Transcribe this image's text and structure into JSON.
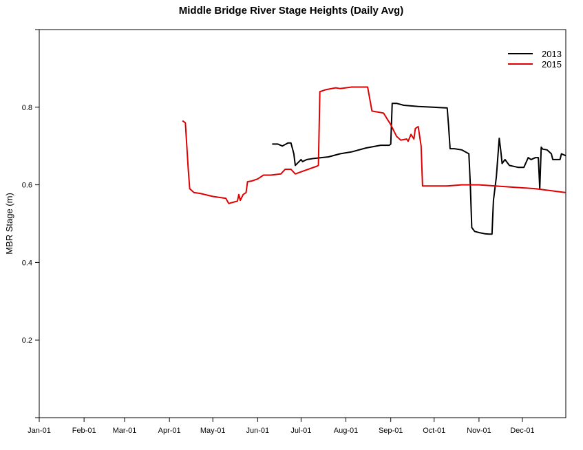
{
  "chart_data": {
    "type": "line",
    "title": "Middle Bridge River Stage Heights (Daily Avg)",
    "xlabel": "",
    "ylabel": "MBR Stage (m)",
    "xlim": [
      "2015-01-01",
      "2015-12-31"
    ],
    "ylim": [
      0.0,
      1.0
    ],
    "x_ticks": [
      {
        "date": "2015-01-01",
        "label": "Jan-01"
      },
      {
        "date": "2015-02-01",
        "label": "Feb-01"
      },
      {
        "date": "2015-03-01",
        "label": "Mar-01"
      },
      {
        "date": "2015-04-01",
        "label": "Apr-01"
      },
      {
        "date": "2015-05-01",
        "label": "May-01"
      },
      {
        "date": "2015-06-01",
        "label": "Jun-01"
      },
      {
        "date": "2015-07-01",
        "label": "Jul-01"
      },
      {
        "date": "2015-08-01",
        "label": "Aug-01"
      },
      {
        "date": "2015-09-01",
        "label": "Sep-01"
      },
      {
        "date": "2015-10-01",
        "label": "Oct-01"
      },
      {
        "date": "2015-11-01",
        "label": "Nov-01"
      },
      {
        "date": "2015-12-01",
        "label": "Dec-01"
      }
    ],
    "y_ticks": [
      {
        "value": 0.2,
        "label": "0.2"
      },
      {
        "value": 0.4,
        "label": "0.4"
      },
      {
        "value": 0.6,
        "label": "0.6"
      },
      {
        "value": 0.8,
        "label": "0.8"
      }
    ],
    "grid": false,
    "legend": "top-right",
    "series": [
      {
        "name": "2013",
        "color": "#000000",
        "x": [
          "2015-06-11",
          "2015-06-15",
          "2015-06-18",
          "2015-06-22",
          "2015-06-24",
          "2015-06-26",
          "2015-06-27",
          "2015-07-01",
          "2015-07-02",
          "2015-07-05",
          "2015-07-10",
          "2015-07-20",
          "2015-07-28",
          "2015-08-05",
          "2015-08-15",
          "2015-08-25",
          "2015-08-31",
          "2015-09-01",
          "2015-09-02",
          "2015-09-05",
          "2015-09-10",
          "2015-09-20",
          "2015-09-30",
          "2015-10-10",
          "2015-10-11",
          "2015-10-12",
          "2015-10-15",
          "2015-10-20",
          "2015-10-25",
          "2015-10-26",
          "2015-10-27",
          "2015-10-29",
          "2015-11-01",
          "2015-11-05",
          "2015-11-08",
          "2015-11-10",
          "2015-11-11",
          "2015-11-13",
          "2015-11-15",
          "2015-11-16",
          "2015-11-17",
          "2015-11-19",
          "2015-11-22",
          "2015-11-28",
          "2015-12-02",
          "2015-12-05",
          "2015-12-07",
          "2015-12-10",
          "2015-12-12",
          "2015-12-13",
          "2015-12-14",
          "2015-12-15",
          "2015-12-18",
          "2015-12-21",
          "2015-12-22",
          "2015-12-24",
          "2015-12-27",
          "2015-12-28",
          "2015-12-31"
        ],
        "y": [
          0.705,
          0.705,
          0.7,
          0.708,
          0.708,
          0.68,
          0.65,
          0.665,
          0.66,
          0.665,
          0.668,
          0.672,
          0.68,
          0.685,
          0.695,
          0.702,
          0.702,
          0.705,
          0.81,
          0.81,
          0.805,
          0.802,
          0.8,
          0.798,
          0.75,
          0.693,
          0.693,
          0.69,
          0.68,
          0.6,
          0.49,
          0.48,
          0.477,
          0.474,
          0.473,
          0.473,
          0.56,
          0.62,
          0.72,
          0.69,
          0.655,
          0.665,
          0.65,
          0.645,
          0.645,
          0.67,
          0.665,
          0.67,
          0.67,
          0.59,
          0.697,
          0.692,
          0.69,
          0.68,
          0.665,
          0.665,
          0.665,
          0.68,
          0.675
        ]
      },
      {
        "name": "2015",
        "color": "#e00000",
        "x": [
          "2015-04-10",
          "2015-04-12",
          "2015-04-13",
          "2015-04-14",
          "2015-04-15",
          "2015-04-18",
          "2015-04-22",
          "2015-05-01",
          "2015-05-10",
          "2015-05-12",
          "2015-05-15",
          "2015-05-18",
          "2015-05-19",
          "2015-05-20",
          "2015-05-22",
          "2015-05-24",
          "2015-05-25",
          "2015-05-28",
          "2015-06-01",
          "2015-06-05",
          "2015-06-10",
          "2015-06-17",
          "2015-06-20",
          "2015-06-24",
          "2015-06-26",
          "2015-06-27",
          "2015-07-02",
          "2015-07-12",
          "2015-07-13",
          "2015-07-14",
          "2015-07-18",
          "2015-07-25",
          "2015-07-28",
          "2015-08-05",
          "2015-08-15",
          "2015-08-16",
          "2015-08-19",
          "2015-08-27",
          "2015-09-01",
          "2015-09-05",
          "2015-09-08",
          "2015-09-12",
          "2015-09-13",
          "2015-09-15",
          "2015-09-17",
          "2015-09-18",
          "2015-09-20",
          "2015-09-22",
          "2015-09-23",
          "2015-09-25",
          "2015-10-10",
          "2015-10-20",
          "2015-11-01",
          "2015-11-20",
          "2015-12-10",
          "2015-12-31"
        ],
        "y": [
          0.765,
          0.76,
          0.7,
          0.64,
          0.59,
          0.58,
          0.578,
          0.57,
          0.565,
          0.552,
          0.555,
          0.558,
          0.575,
          0.56,
          0.575,
          0.58,
          0.608,
          0.61,
          0.615,
          0.625,
          0.625,
          0.628,
          0.64,
          0.64,
          0.632,
          0.628,
          0.635,
          0.648,
          0.65,
          0.84,
          0.845,
          0.85,
          0.848,
          0.852,
          0.852,
          0.852,
          0.79,
          0.785,
          0.755,
          0.725,
          0.715,
          0.718,
          0.712,
          0.73,
          0.718,
          0.745,
          0.75,
          0.7,
          0.597,
          0.597,
          0.597,
          0.6,
          0.6,
          0.595,
          0.59,
          0.58
        ]
      }
    ]
  }
}
